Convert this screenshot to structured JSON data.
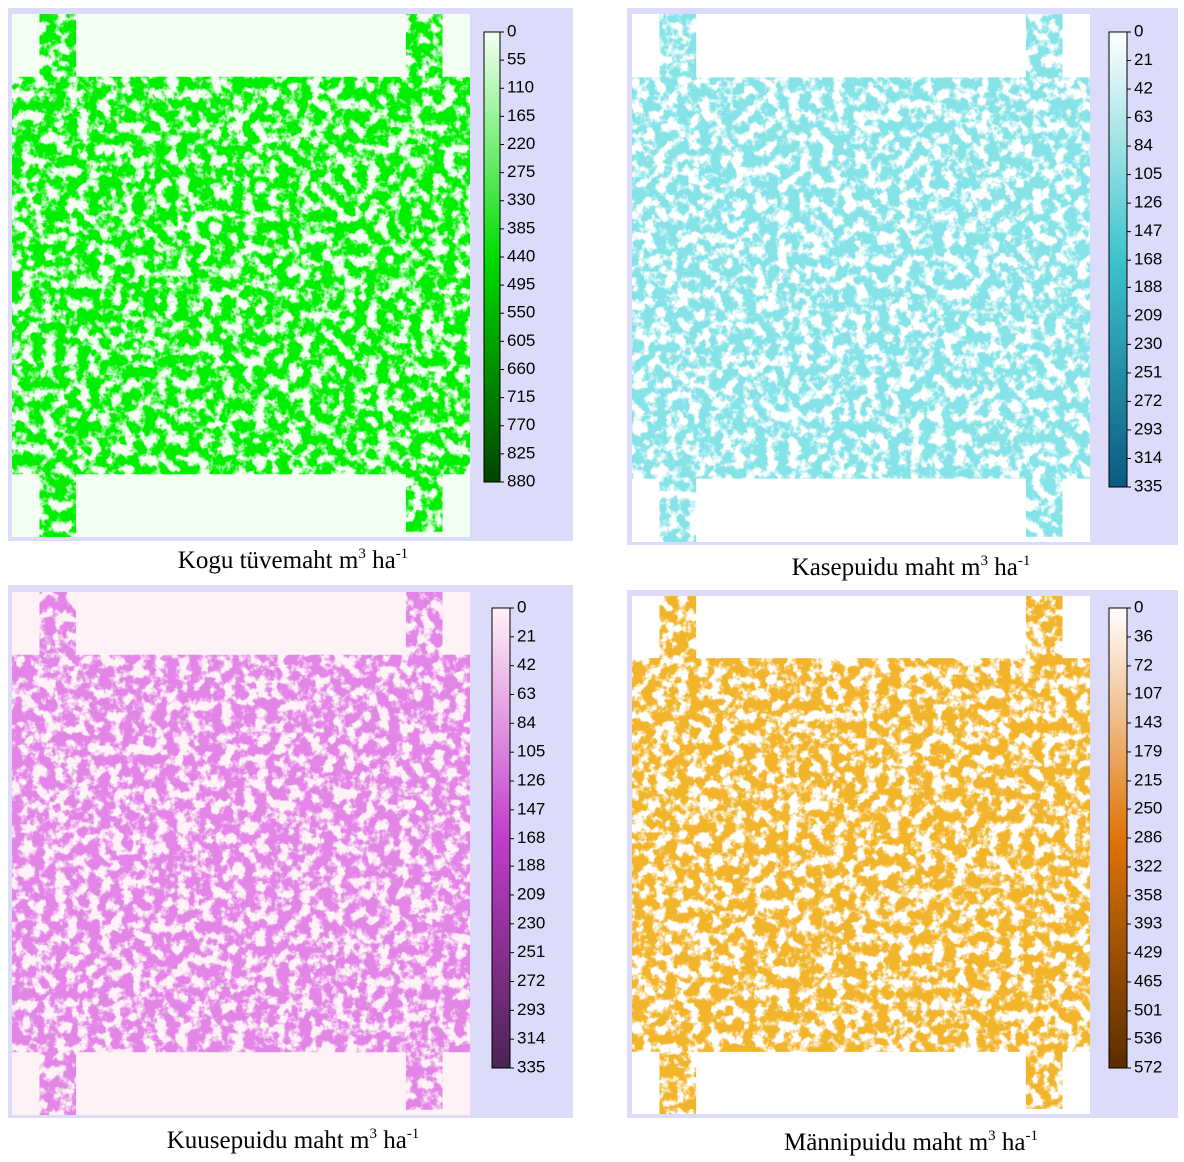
{
  "panels": [
    {
      "caption": [
        "Kogu tüvemaht m",
        "3",
        " ha",
        "-1"
      ],
      "colorbar": {
        "ticks": [
          0,
          55,
          110,
          165,
          220,
          275,
          330,
          385,
          440,
          495,
          550,
          605,
          660,
          715,
          770,
          825,
          880
        ],
        "colors": [
          "#f4fff4",
          "#00dd00",
          "#004400"
        ]
      }
    },
    {
      "caption": [
        "Kasepuidu maht m",
        "3",
        " ha",
        "-1"
      ],
      "colorbar": {
        "ticks": [
          0,
          21,
          42,
          63,
          84,
          105,
          126,
          147,
          168,
          188,
          209,
          230,
          251,
          272,
          293,
          314,
          335
        ],
        "colors": [
          "#ffffff",
          "#3cc4cc",
          "#0a5a82"
        ]
      }
    },
    {
      "caption": [
        "Kuusepuidu maht m",
        "3",
        " ha",
        "-1"
      ],
      "colorbar": {
        "ticks": [
          0,
          21,
          42,
          63,
          84,
          105,
          126,
          147,
          168,
          188,
          209,
          230,
          251,
          272,
          293,
          314,
          335
        ],
        "colors": [
          "#fff2f6",
          "#c23ccc",
          "#4a2452"
        ]
      }
    },
    {
      "caption": [
        "Männipuidu maht m",
        "3",
        " ha",
        "-1"
      ],
      "colorbar": {
        "ticks": [
          0,
          36,
          72,
          107,
          143,
          179,
          215,
          250,
          286,
          322,
          358,
          393,
          429,
          465,
          501,
          536,
          572
        ],
        "colors": [
          "#ffffff",
          "#e07406",
          "#5a2c00"
        ]
      }
    }
  ]
}
